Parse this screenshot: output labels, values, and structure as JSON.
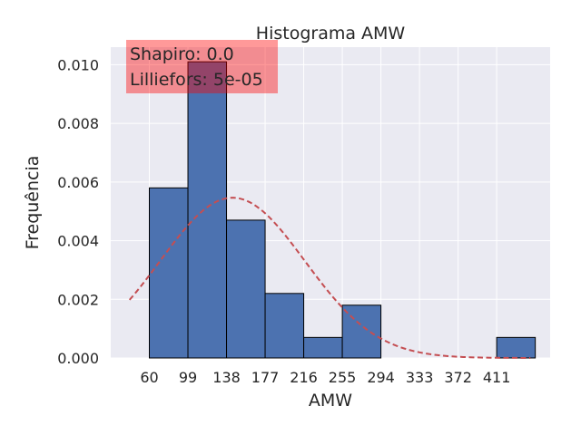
{
  "chart_data": {
    "type": "bar",
    "title": "Histograma AMW",
    "xlabel": "AMW",
    "ylabel": "Frequência",
    "xlim": [
      21,
      465
    ],
    "ylim": [
      0,
      0.0106
    ],
    "xticks": [
      60,
      99,
      138,
      177,
      216,
      255,
      294,
      333,
      372,
      411
    ],
    "yticks": [
      0.0,
      0.002,
      0.004,
      0.006,
      0.008,
      0.01
    ],
    "ytick_labels": [
      "0.000",
      "0.002",
      "0.004",
      "0.006",
      "0.008",
      "0.010"
    ],
    "grid": true,
    "bins": [
      {
        "x0": 60,
        "x1": 99,
        "value": 0.0058
      },
      {
        "x0": 99,
        "x1": 138,
        "value": 0.0101
      },
      {
        "x0": 138,
        "x1": 177,
        "value": 0.0047
      },
      {
        "x0": 177,
        "x1": 216,
        "value": 0.0022
      },
      {
        "x0": 216,
        "x1": 255,
        "value": 0.0007
      },
      {
        "x0": 255,
        "x1": 294,
        "value": 0.0018
      },
      {
        "x0": 294,
        "x1": 333,
        "value": 0
      },
      {
        "x0": 333,
        "x1": 372,
        "value": 0
      },
      {
        "x0": 372,
        "x1": 411,
        "value": 0
      },
      {
        "x0": 411,
        "x1": 450,
        "value": 0.0007
      }
    ],
    "normal_curve": {
      "mean": 144,
      "std": 73,
      "xrange": [
        40,
        445
      ],
      "style": "dashed"
    },
    "annotation": {
      "lines": [
        "Shapiro: 0.0",
        "Lilliefors: 5e-05"
      ],
      "placement": "top-left"
    },
    "colors": {
      "bar_fill": "#4c72b0",
      "bar_edge": "#000000",
      "curve": "#c44e52",
      "annotation_bg": "#ff0000",
      "plot_bg": "#eaeaf2",
      "grid": "#ffffff"
    }
  }
}
